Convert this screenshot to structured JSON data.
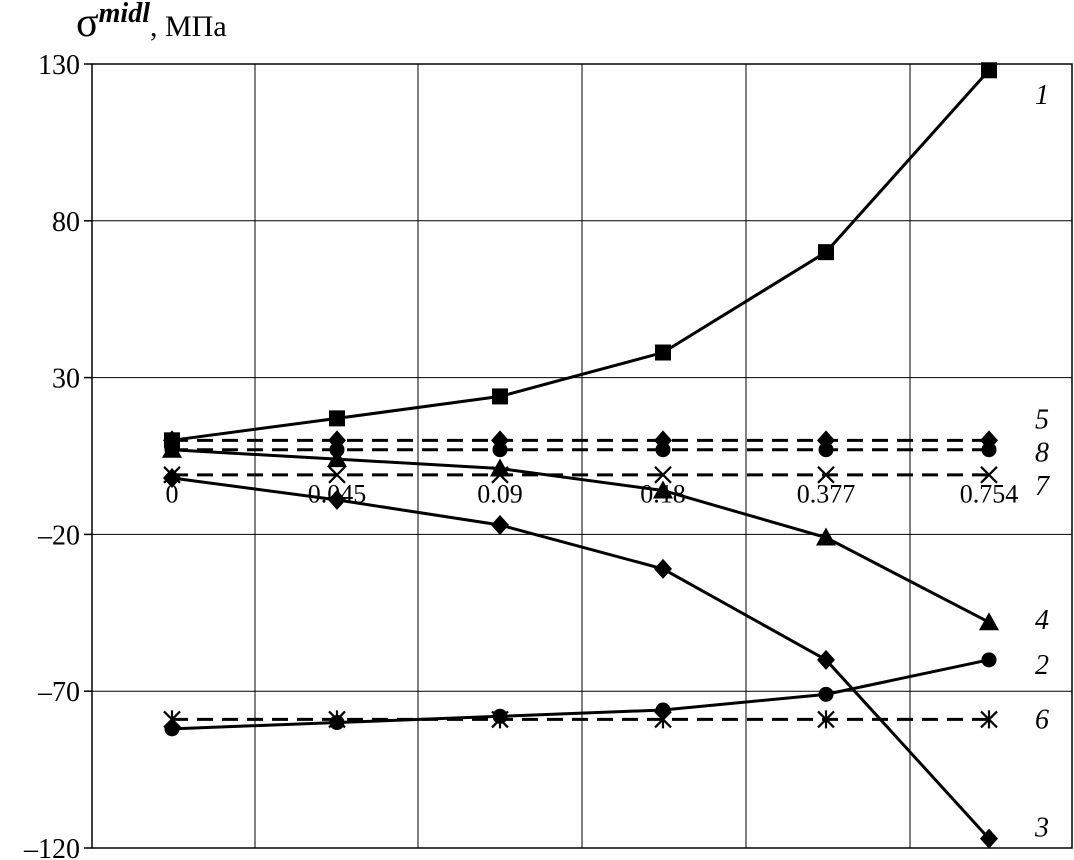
{
  "chart_data": {
    "type": "line",
    "ylabel": {
      "symbol": "σ",
      "superscript": "midl",
      "unit": ", МПа"
    },
    "categories": [
      "0",
      "0.045",
      "0.09",
      "0.18",
      "0.377",
      "0.754"
    ],
    "ylim": [
      -120,
      130
    ],
    "yticks": [
      "130",
      "80",
      "30",
      "–20",
      "–70",
      "–120"
    ],
    "ytick_values": [
      130,
      80,
      30,
      -20,
      -70,
      -120
    ],
    "grid": true,
    "series": [
      {
        "name": "1",
        "style": "solid",
        "marker": "square",
        "values": [
          10,
          17,
          24,
          38,
          70,
          128
        ]
      },
      {
        "name": "2",
        "style": "solid",
        "marker": "circle",
        "values": [
          -82,
          -80,
          -78,
          -76,
          -71,
          -60
        ]
      },
      {
        "name": "3",
        "style": "solid",
        "marker": "diamond",
        "values": [
          -2,
          -9,
          -17,
          -31,
          -60,
          -117
        ]
      },
      {
        "name": "4",
        "style": "solid",
        "marker": "triangle",
        "values": [
          7,
          4,
          1,
          -6,
          -21,
          -48
        ]
      },
      {
        "name": "5",
        "style": "dashed",
        "marker": "diamond",
        "values": [
          10,
          10,
          10,
          10,
          10,
          10
        ]
      },
      {
        "name": "6",
        "style": "dashed",
        "marker": "star",
        "values": [
          -79,
          -79,
          -79,
          -79,
          -79,
          -79
        ]
      },
      {
        "name": "7",
        "style": "dashed",
        "marker": "cross",
        "values": [
          -1,
          -1,
          -1,
          -1,
          -1,
          -1
        ]
      },
      {
        "name": "8",
        "style": "dashed",
        "marker": "circle",
        "values": [
          7,
          7,
          7,
          7,
          7,
          7
        ]
      }
    ]
  }
}
